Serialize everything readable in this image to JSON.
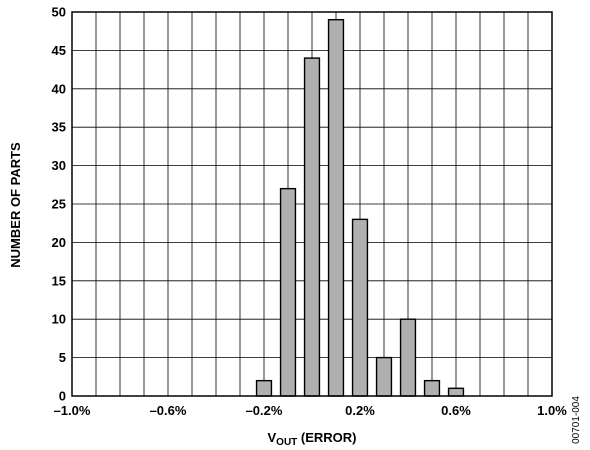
{
  "chart_data": {
    "type": "bar",
    "x": [
      -0.2,
      -0.1,
      0.0,
      0.1,
      0.2,
      0.3,
      0.4,
      0.5,
      0.6
    ],
    "values": [
      2,
      27,
      44,
      49,
      23,
      5,
      10,
      2,
      1
    ],
    "bar_color": "#b0b0b0",
    "xlim": [
      -1.0,
      1.0
    ],
    "ylim": [
      0,
      50
    ],
    "y_ticks": [
      0,
      5,
      10,
      15,
      20,
      25,
      30,
      35,
      40,
      45,
      50
    ],
    "x_tick_values": [
      -1.0,
      -0.6,
      -0.2,
      0.2,
      0.6,
      1.0
    ],
    "x_tick_labels": [
      "–1.0%",
      "–0.6%",
      "–0.2%",
      "0.2%",
      "0.6%",
      "1.0%"
    ],
    "grid": true,
    "ylabel": "NUMBER OF PARTS",
    "xlabel": {
      "main": "V",
      "subscript": "OUT",
      "suffix": " (ERROR)"
    }
  },
  "figure_code": "00701-004"
}
